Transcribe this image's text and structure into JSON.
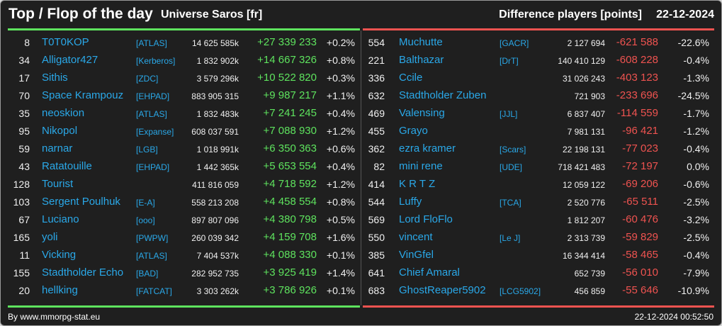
{
  "header": {
    "title": "Top / Flop of the day",
    "universe": "Universe Saros [fr]",
    "metric": "Difference players [points]",
    "date": "22-12-2024"
  },
  "colors": {
    "top_accent": "#5ee35e",
    "flop_accent": "#ef5350",
    "name_color": "#2aa8e8",
    "background": "#1f1f1f"
  },
  "top": [
    {
      "rank": "8",
      "name": "T0T0KOP",
      "alliance": "[ATLAS]",
      "points": "14 625 585k",
      "diff": "+27 339 233",
      "pct": "+0.2%"
    },
    {
      "rank": "34",
      "name": "Alligator427",
      "alliance": "[Kerberos]",
      "points": "1 832 902k",
      "diff": "+14 667 326",
      "pct": "+0.8%"
    },
    {
      "rank": "17",
      "name": "Sithis",
      "alliance": "[ZDC]",
      "points": "3 579 296k",
      "diff": "+10 522 820",
      "pct": "+0.3%"
    },
    {
      "rank": "70",
      "name": "Space Krampouz",
      "alliance": "[EHPAD]",
      "points": "883 905 315",
      "diff": "+9 987 217",
      "pct": "+1.1%"
    },
    {
      "rank": "35",
      "name": "neoskion",
      "alliance": "[ATLAS]",
      "points": "1 832 483k",
      "diff": "+7 241 245",
      "pct": "+0.4%"
    },
    {
      "rank": "95",
      "name": "Nikopol",
      "alliance": "[Expanse]",
      "points": "608 037 591",
      "diff": "+7 088 930",
      "pct": "+1.2%"
    },
    {
      "rank": "59",
      "name": "narnar",
      "alliance": "[LGB]",
      "points": "1 018 991k",
      "diff": "+6 350 363",
      "pct": "+0.6%"
    },
    {
      "rank": "43",
      "name": "Ratatouille",
      "alliance": "[EHPAD]",
      "points": "1 442 365k",
      "diff": "+5 653 554",
      "pct": "+0.4%"
    },
    {
      "rank": "128",
      "name": "Tourist",
      "alliance": "",
      "points": "411 816 059",
      "diff": "+4 718 592",
      "pct": "+1.2%"
    },
    {
      "rank": "103",
      "name": "Sergent Poulhuk",
      "alliance": "[E-A]",
      "points": "558 213 208",
      "diff": "+4 458 554",
      "pct": "+0.8%"
    },
    {
      "rank": "67",
      "name": "Luciano",
      "alliance": "[ooo]",
      "points": "897 807 096",
      "diff": "+4 380 798",
      "pct": "+0.5%"
    },
    {
      "rank": "165",
      "name": "yoli",
      "alliance": "[PWPW]",
      "points": "260 039 342",
      "diff": "+4 159 708",
      "pct": "+1.6%"
    },
    {
      "rank": "11",
      "name": "Vicking",
      "alliance": "[ATLAS]",
      "points": "7 404 537k",
      "diff": "+4 088 330",
      "pct": "+0.1%"
    },
    {
      "rank": "155",
      "name": "Stadtholder Echo",
      "alliance": "[BAD]",
      "points": "282 952 735",
      "diff": "+3 925 419",
      "pct": "+1.4%"
    },
    {
      "rank": "20",
      "name": "hellking",
      "alliance": "[FATCAT]",
      "points": "3 303 262k",
      "diff": "+3 786 926",
      "pct": "+0.1%"
    }
  ],
  "flop": [
    {
      "rank": "554",
      "name": "Muchutte",
      "alliance": "[GACR]",
      "points": "2 127 694",
      "diff": "-621 588",
      "pct": "-22.6%"
    },
    {
      "rank": "221",
      "name": "Balthazar",
      "alliance": "[DrT]",
      "points": "140 410 129",
      "diff": "-608 228",
      "pct": "-0.4%"
    },
    {
      "rank": "336",
      "name": "Ccile",
      "alliance": "",
      "points": "31 026 243",
      "diff": "-403 123",
      "pct": "-1.3%"
    },
    {
      "rank": "632",
      "name": "Stadtholder Zuben",
      "alliance": "",
      "points": "721 903",
      "diff": "-233 696",
      "pct": "-24.5%"
    },
    {
      "rank": "469",
      "name": "Valensing",
      "alliance": "[JJL]",
      "points": "6 837 407",
      "diff": "-114 559",
      "pct": "-1.7%"
    },
    {
      "rank": "455",
      "name": "Grayo",
      "alliance": "",
      "points": "7 981 131",
      "diff": "-96 421",
      "pct": "-1.2%"
    },
    {
      "rank": "362",
      "name": "ezra kramer",
      "alliance": "[Scars]",
      "points": "22 198 131",
      "diff": "-77 023",
      "pct": "-0.4%"
    },
    {
      "rank": "82",
      "name": "mini rene",
      "alliance": "[UDE]",
      "points": "718 421 483",
      "diff": "-72 197",
      "pct": "0.0%"
    },
    {
      "rank": "414",
      "name": "K R T Z",
      "alliance": "",
      "points": "12 059 122",
      "diff": "-69 206",
      "pct": "-0.6%"
    },
    {
      "rank": "544",
      "name": "Luffy",
      "alliance": "[TCA]",
      "points": "2 520 776",
      "diff": "-65 511",
      "pct": "-2.5%"
    },
    {
      "rank": "569",
      "name": "Lord FloFlo",
      "alliance": "",
      "points": "1 812 207",
      "diff": "-60 476",
      "pct": "-3.2%"
    },
    {
      "rank": "550",
      "name": "vincent",
      "alliance": "[Le J]",
      "points": "2 313 739",
      "diff": "-59 829",
      "pct": "-2.5%"
    },
    {
      "rank": "385",
      "name": "VinGfel",
      "alliance": "",
      "points": "16 344 414",
      "diff": "-58 465",
      "pct": "-0.4%"
    },
    {
      "rank": "641",
      "name": "Chief Amaral",
      "alliance": "",
      "points": "652 739",
      "diff": "-56 010",
      "pct": "-7.9%"
    },
    {
      "rank": "683",
      "name": "GhostReaper5902",
      "alliance": "[LCG5902]",
      "points": "456 859",
      "diff": "-55 646",
      "pct": "-10.9%"
    }
  ],
  "footer": {
    "credit": "By www.mmorpg-stat.eu",
    "timestamp": "22-12-2024 00:52:50"
  }
}
